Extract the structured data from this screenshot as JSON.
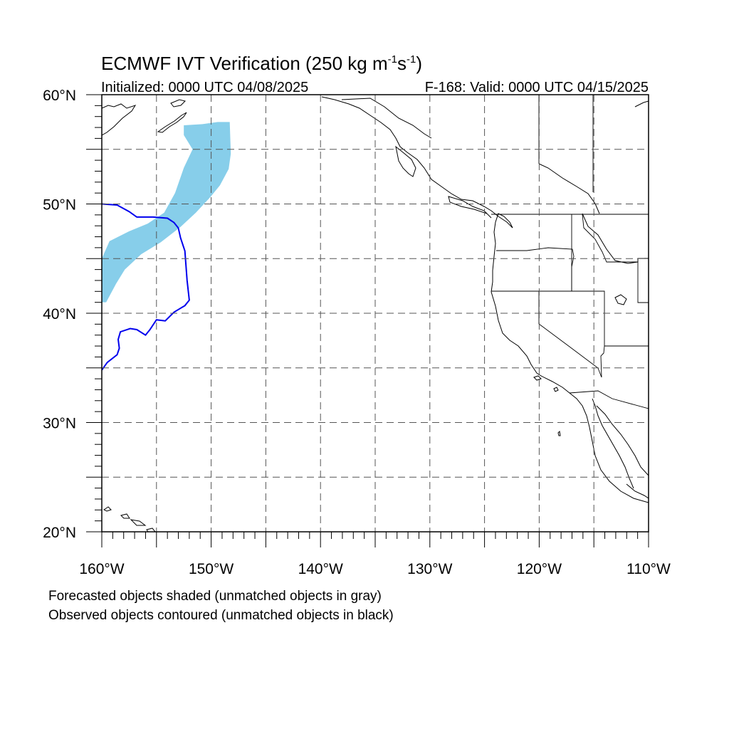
{
  "title": {
    "main": "ECMWF IVT Verification (250 kg m",
    "sup1": "-1",
    "mid": "s",
    "sup2": "-1",
    "end": ")"
  },
  "init_label": "Initialized: 0000 UTC 04/08/2025",
  "valid_label": "F-168: Valid: 0000 UTC 04/15/2025",
  "lat_ticks": [
    {
      "lat": 60,
      "label": "60°N"
    },
    {
      "lat": 50,
      "label": "50°N"
    },
    {
      "lat": 40,
      "label": "40°N"
    },
    {
      "lat": 30,
      "label": "30°N"
    },
    {
      "lat": 20,
      "label": "20°N"
    }
  ],
  "lon_ticks": [
    {
      "lon": -160,
      "label": "160°W"
    },
    {
      "lon": -150,
      "label": "150°W"
    },
    {
      "lon": -140,
      "label": "140°W"
    },
    {
      "lon": -130,
      "label": "130°W"
    },
    {
      "lon": -120,
      "label": "120°W"
    },
    {
      "lon": -110,
      "label": "110°W"
    }
  ],
  "footnotes": [
    "Forecasted objects shaded (unmatched objects in gray)",
    "Observed objects contoured (unmatched objects in black)"
  ],
  "colors": {
    "forecast_fill": "#87ceea",
    "observed_contour": "#0000ee",
    "coastline": "#000000",
    "grid": "#555555"
  },
  "map_data": {
    "extent": {
      "lon": [
        -160,
        -110
      ],
      "lat": [
        20,
        60
      ]
    },
    "grid_spacing_deg": 5,
    "forecast_object": [
      [
        -152.5,
        57.2
      ],
      [
        -150.8,
        57.3
      ],
      [
        -149.4,
        57.5
      ],
      [
        -148.3,
        57.5
      ],
      [
        -148.2,
        54.6
      ],
      [
        -148.4,
        53.2
      ],
      [
        -149.2,
        51.7
      ],
      [
        -150.1,
        50.6
      ],
      [
        -151.4,
        49.2
      ],
      [
        -152.8,
        47.9
      ],
      [
        -154.6,
        46.5
      ],
      [
        -156.4,
        45.4
      ],
      [
        -157.9,
        44.0
      ],
      [
        -158.7,
        42.7
      ],
      [
        -159.6,
        41.0
      ],
      [
        -160.0,
        41.0
      ],
      [
        -160.0,
        45.0
      ],
      [
        -159.3,
        46.6
      ],
      [
        -157.5,
        47.5
      ],
      [
        -155.8,
        48.2
      ],
      [
        -154.3,
        49.2
      ],
      [
        -153.3,
        51.0
      ],
      [
        -152.5,
        53.3
      ],
      [
        -151.7,
        55.0
      ],
      [
        -152.5,
        56.3
      ]
    ],
    "observed_object": [
      [
        -160.0,
        50.0
      ],
      [
        -158.6,
        49.9
      ],
      [
        -157.5,
        49.3
      ],
      [
        -156.8,
        48.8
      ],
      [
        -155.3,
        48.8
      ],
      [
        -154.0,
        48.7
      ],
      [
        -153.4,
        48.3
      ],
      [
        -153.0,
        47.8
      ],
      [
        -152.8,
        46.9
      ],
      [
        -152.4,
        45.7
      ],
      [
        -152.2,
        43.0
      ],
      [
        -152.0,
        41.2
      ],
      [
        -152.4,
        40.7
      ],
      [
        -153.4,
        40.1
      ],
      [
        -154.2,
        39.3
      ],
      [
        -155.0,
        39.4
      ],
      [
        -155.6,
        38.5
      ],
      [
        -156.0,
        38.0
      ],
      [
        -156.8,
        38.5
      ],
      [
        -157.4,
        38.6
      ],
      [
        -158.3,
        38.3
      ],
      [
        -158.5,
        37.6
      ],
      [
        -158.4,
        36.8
      ],
      [
        -158.6,
        36.2
      ],
      [
        -159.5,
        35.5
      ],
      [
        -160.0,
        34.8
      ]
    ]
  }
}
